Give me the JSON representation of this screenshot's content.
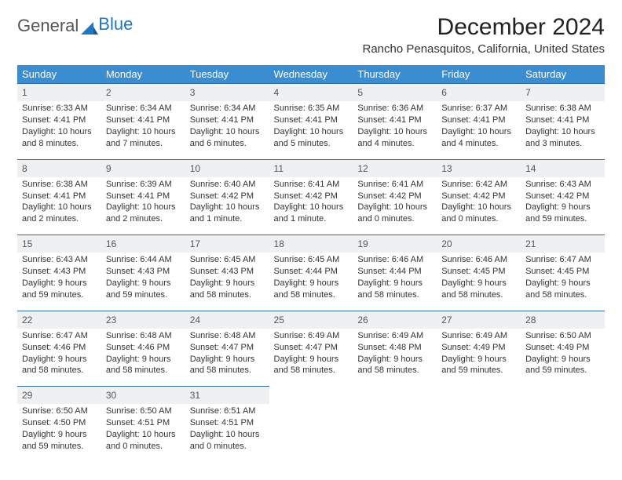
{
  "logo": {
    "text_gray": "General",
    "text_blue": "Blue"
  },
  "title": "December 2024",
  "location": "Rancho Penasquitos, California, United States",
  "columns": [
    "Sunday",
    "Monday",
    "Tuesday",
    "Wednesday",
    "Thursday",
    "Friday",
    "Saturday"
  ],
  "colors": {
    "header_bg": "#3a8dd0",
    "header_text": "#ffffff",
    "daynum_bg": "#eef0f2",
    "daynum_border": "#2f6aa0",
    "body_text": "#333333"
  },
  "weeks": [
    [
      {
        "n": "1",
        "sr": "Sunrise: 6:33 AM",
        "ss": "Sunset: 4:41 PM",
        "dl": "Daylight: 10 hours and 8 minutes."
      },
      {
        "n": "2",
        "sr": "Sunrise: 6:34 AM",
        "ss": "Sunset: 4:41 PM",
        "dl": "Daylight: 10 hours and 7 minutes."
      },
      {
        "n": "3",
        "sr": "Sunrise: 6:34 AM",
        "ss": "Sunset: 4:41 PM",
        "dl": "Daylight: 10 hours and 6 minutes."
      },
      {
        "n": "4",
        "sr": "Sunrise: 6:35 AM",
        "ss": "Sunset: 4:41 PM",
        "dl": "Daylight: 10 hours and 5 minutes."
      },
      {
        "n": "5",
        "sr": "Sunrise: 6:36 AM",
        "ss": "Sunset: 4:41 PM",
        "dl": "Daylight: 10 hours and 4 minutes."
      },
      {
        "n": "6",
        "sr": "Sunrise: 6:37 AM",
        "ss": "Sunset: 4:41 PM",
        "dl": "Daylight: 10 hours and 4 minutes."
      },
      {
        "n": "7",
        "sr": "Sunrise: 6:38 AM",
        "ss": "Sunset: 4:41 PM",
        "dl": "Daylight: 10 hours and 3 minutes."
      }
    ],
    [
      {
        "n": "8",
        "sr": "Sunrise: 6:38 AM",
        "ss": "Sunset: 4:41 PM",
        "dl": "Daylight: 10 hours and 2 minutes."
      },
      {
        "n": "9",
        "sr": "Sunrise: 6:39 AM",
        "ss": "Sunset: 4:41 PM",
        "dl": "Daylight: 10 hours and 2 minutes."
      },
      {
        "n": "10",
        "sr": "Sunrise: 6:40 AM",
        "ss": "Sunset: 4:42 PM",
        "dl": "Daylight: 10 hours and 1 minute."
      },
      {
        "n": "11",
        "sr": "Sunrise: 6:41 AM",
        "ss": "Sunset: 4:42 PM",
        "dl": "Daylight: 10 hours and 1 minute."
      },
      {
        "n": "12",
        "sr": "Sunrise: 6:41 AM",
        "ss": "Sunset: 4:42 PM",
        "dl": "Daylight: 10 hours and 0 minutes."
      },
      {
        "n": "13",
        "sr": "Sunrise: 6:42 AM",
        "ss": "Sunset: 4:42 PM",
        "dl": "Daylight: 10 hours and 0 minutes."
      },
      {
        "n": "14",
        "sr": "Sunrise: 6:43 AM",
        "ss": "Sunset: 4:42 PM",
        "dl": "Daylight: 9 hours and 59 minutes."
      }
    ],
    [
      {
        "n": "15",
        "sr": "Sunrise: 6:43 AM",
        "ss": "Sunset: 4:43 PM",
        "dl": "Daylight: 9 hours and 59 minutes."
      },
      {
        "n": "16",
        "sr": "Sunrise: 6:44 AM",
        "ss": "Sunset: 4:43 PM",
        "dl": "Daylight: 9 hours and 59 minutes."
      },
      {
        "n": "17",
        "sr": "Sunrise: 6:45 AM",
        "ss": "Sunset: 4:43 PM",
        "dl": "Daylight: 9 hours and 58 minutes."
      },
      {
        "n": "18",
        "sr": "Sunrise: 6:45 AM",
        "ss": "Sunset: 4:44 PM",
        "dl": "Daylight: 9 hours and 58 minutes."
      },
      {
        "n": "19",
        "sr": "Sunrise: 6:46 AM",
        "ss": "Sunset: 4:44 PM",
        "dl": "Daylight: 9 hours and 58 minutes."
      },
      {
        "n": "20",
        "sr": "Sunrise: 6:46 AM",
        "ss": "Sunset: 4:45 PM",
        "dl": "Daylight: 9 hours and 58 minutes."
      },
      {
        "n": "21",
        "sr": "Sunrise: 6:47 AM",
        "ss": "Sunset: 4:45 PM",
        "dl": "Daylight: 9 hours and 58 minutes."
      }
    ],
    [
      {
        "n": "22",
        "sr": "Sunrise: 6:47 AM",
        "ss": "Sunset: 4:46 PM",
        "dl": "Daylight: 9 hours and 58 minutes."
      },
      {
        "n": "23",
        "sr": "Sunrise: 6:48 AM",
        "ss": "Sunset: 4:46 PM",
        "dl": "Daylight: 9 hours and 58 minutes."
      },
      {
        "n": "24",
        "sr": "Sunrise: 6:48 AM",
        "ss": "Sunset: 4:47 PM",
        "dl": "Daylight: 9 hours and 58 minutes."
      },
      {
        "n": "25",
        "sr": "Sunrise: 6:49 AM",
        "ss": "Sunset: 4:47 PM",
        "dl": "Daylight: 9 hours and 58 minutes."
      },
      {
        "n": "26",
        "sr": "Sunrise: 6:49 AM",
        "ss": "Sunset: 4:48 PM",
        "dl": "Daylight: 9 hours and 58 minutes."
      },
      {
        "n": "27",
        "sr": "Sunrise: 6:49 AM",
        "ss": "Sunset: 4:49 PM",
        "dl": "Daylight: 9 hours and 59 minutes."
      },
      {
        "n": "28",
        "sr": "Sunrise: 6:50 AM",
        "ss": "Sunset: 4:49 PM",
        "dl": "Daylight: 9 hours and 59 minutes."
      }
    ],
    [
      {
        "n": "29",
        "sr": "Sunrise: 6:50 AM",
        "ss": "Sunset: 4:50 PM",
        "dl": "Daylight: 9 hours and 59 minutes."
      },
      {
        "n": "30",
        "sr": "Sunrise: 6:50 AM",
        "ss": "Sunset: 4:51 PM",
        "dl": "Daylight: 10 hours and 0 minutes."
      },
      {
        "n": "31",
        "sr": "Sunrise: 6:51 AM",
        "ss": "Sunset: 4:51 PM",
        "dl": "Daylight: 10 hours and 0 minutes."
      },
      null,
      null,
      null,
      null
    ]
  ]
}
